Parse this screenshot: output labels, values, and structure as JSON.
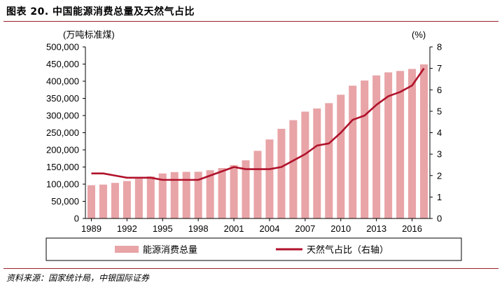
{
  "title": "图表 20. 中国能源消费总量及天然气占比",
  "source": "资料来源：国家统计局，中银国际证券",
  "colors": {
    "bar": "#e8a4a7",
    "line": "#b0122b",
    "rule": "#9a1f2a"
  },
  "chart_data": {
    "type": "bar+line",
    "x": [
      1989,
      1990,
      1991,
      1992,
      1993,
      1994,
      1995,
      1996,
      1997,
      1998,
      1999,
      2000,
      2001,
      2002,
      2003,
      2004,
      2005,
      2006,
      2007,
      2008,
      2009,
      2010,
      2011,
      2012,
      2013,
      2014,
      2015,
      2016,
      2017
    ],
    "xticks": [
      "1989",
      "1992",
      "1995",
      "1998",
      "2001",
      "2004",
      "2007",
      "2010",
      "2013",
      "2016"
    ],
    "series": [
      {
        "name": "能源消费总量",
        "axis": "left",
        "type": "bar",
        "values": [
          96934,
          98703,
          103783,
          109170,
          115993,
          122737,
          131176,
          135192,
          135909,
          136184,
          140569,
          146964,
          155547,
          169577,
          197083,
          230281,
          261369,
          286467,
          311442,
          320611,
          336126,
          360648,
          387043,
          402138,
          416913,
          425806,
          429905,
          435819,
          449000
        ]
      },
      {
        "name": "天然气占比（右轴）",
        "axis": "right",
        "type": "line",
        "values": [
          2.1,
          2.1,
          2.0,
          1.9,
          1.9,
          1.9,
          1.8,
          1.8,
          1.8,
          1.8,
          2.0,
          2.2,
          2.4,
          2.3,
          2.3,
          2.3,
          2.4,
          2.7,
          3.0,
          3.4,
          3.5,
          4.0,
          4.6,
          4.8,
          5.3,
          5.7,
          5.9,
          6.2,
          7.0
        ]
      }
    ],
    "y_left": {
      "label": "(万吨标准煤)",
      "ylim": [
        0,
        500000
      ],
      "ticks": [
        "0",
        "50,000",
        "100,000",
        "150,000",
        "200,000",
        "250,000",
        "300,000",
        "350,000",
        "400,000",
        "450,000",
        "500,000"
      ]
    },
    "y_right": {
      "label": "(%)",
      "ylim": [
        0,
        8
      ],
      "ticks": [
        "0",
        "1",
        "2",
        "3",
        "4",
        "5",
        "6",
        "7",
        "8"
      ]
    },
    "legend": [
      "能源消费总量",
      "天然气占比（右轴）"
    ],
    "legend_position": "bottom"
  }
}
